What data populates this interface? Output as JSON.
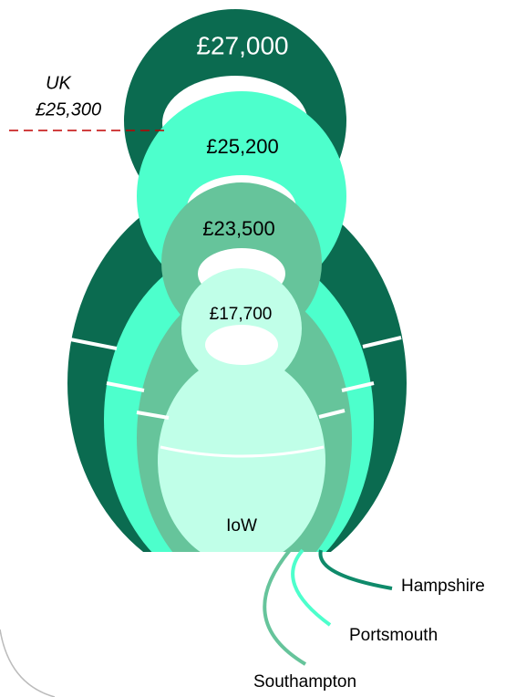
{
  "dolls": [
    {
      "name": "Hampshire",
      "label": "£27,000"
    },
    {
      "name": "Portsmouth",
      "label": "£25,200"
    },
    {
      "name": "Southampton",
      "label": "£23,500"
    },
    {
      "name": "IoW",
      "label": "£17,700"
    }
  ],
  "uk": {
    "name": "UK",
    "label": "£25,300"
  }
}
